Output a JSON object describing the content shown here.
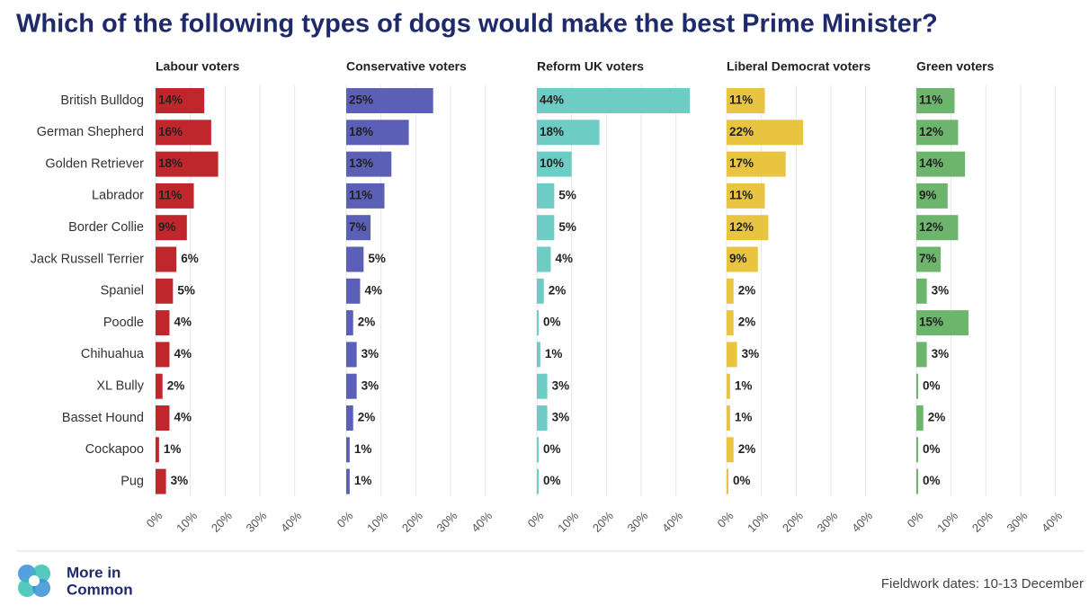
{
  "title": "Which of the following types of dogs would make the best Prime Minister?",
  "chart_data": [
    {
      "type": "bar",
      "title": "Labour voters",
      "color": "#c0272d",
      "label_color": "#ffffff",
      "categories": [
        "British Bulldog",
        "German Shepherd",
        "Golden Retriever",
        "Labrador",
        "Border Collie",
        "Jack Russell Terrier",
        "Spaniel",
        "Poodle",
        "Chihuahua",
        "XL Bully",
        "Basset Hound",
        "Cockapoo",
        "Pug"
      ],
      "values": [
        14,
        16,
        18,
        11,
        9,
        6,
        5,
        4,
        4,
        2,
        4,
        1,
        3
      ],
      "value_labels": [
        "14%",
        "16%",
        "18%",
        "11%",
        "9%",
        "6%",
        "5%",
        "4%",
        "4%",
        "2%",
        "4%",
        "1%",
        "3%"
      ],
      "xlim": [
        0,
        45
      ],
      "xticks": [
        {
          "value": 0,
          "label": "0%"
        },
        {
          "value": 10,
          "label": "10%"
        },
        {
          "value": 20,
          "label": "20%"
        },
        {
          "value": 30,
          "label": "30%"
        },
        {
          "value": 40,
          "label": "40%"
        }
      ],
      "grid": true
    },
    {
      "type": "bar",
      "title": "Conservative voters",
      "color": "#5b5fb5",
      "label_color": "#ffffff",
      "values": [
        25,
        18,
        13,
        11,
        7,
        5,
        4,
        2,
        3,
        3,
        2,
        1,
        1
      ],
      "value_labels": [
        "25%",
        "18%",
        "13%",
        "11%",
        "7%",
        "5%",
        "4%",
        "2%",
        "3%",
        "3%",
        "2%",
        "1%",
        "1%"
      ],
      "xlim": [
        0,
        45
      ],
      "xticks": [
        {
          "value": 0,
          "label": "0%"
        },
        {
          "value": 10,
          "label": "10%"
        },
        {
          "value": 20,
          "label": "20%"
        },
        {
          "value": 30,
          "label": "30%"
        },
        {
          "value": 40,
          "label": "40%"
        }
      ],
      "grid": true
    },
    {
      "type": "bar",
      "title": "Reform UK voters",
      "color": "#6dccc3",
      "label_color": "#1d1d1d",
      "values": [
        44,
        18,
        10,
        5,
        5,
        4,
        2,
        0,
        1,
        3,
        3,
        0,
        0
      ],
      "value_labels": [
        "44%",
        "18%",
        "10%",
        "5%",
        "5%",
        "4%",
        "2%",
        "0%",
        "1%",
        "3%",
        "3%",
        "0%",
        "0%"
      ],
      "xlim": [
        0,
        45
      ],
      "xticks": [
        {
          "value": 0,
          "label": "0%"
        },
        {
          "value": 10,
          "label": "10%"
        },
        {
          "value": 20,
          "label": "20%"
        },
        {
          "value": 30,
          "label": "30%"
        },
        {
          "value": 40,
          "label": "40%"
        }
      ],
      "grid": true
    },
    {
      "type": "bar",
      "title": "Liberal Democrat voters",
      "color": "#e9c440",
      "label_color": "#1d1d1d",
      "values": [
        11,
        22,
        17,
        11,
        12,
        9,
        2,
        2,
        3,
        1,
        1,
        2,
        0
      ],
      "value_labels": [
        "11%",
        "22%",
        "17%",
        "11%",
        "12%",
        "9%",
        "2%",
        "2%",
        "3%",
        "1%",
        "1%",
        "2%",
        "0%"
      ],
      "xlim": [
        0,
        45
      ],
      "xticks": [
        {
          "value": 0,
          "label": "0%"
        },
        {
          "value": 10,
          "label": "10%"
        },
        {
          "value": 20,
          "label": "20%"
        },
        {
          "value": 30,
          "label": "30%"
        },
        {
          "value": 40,
          "label": "40%"
        }
      ],
      "grid": true
    },
    {
      "type": "bar",
      "title": "Green voters",
      "color": "#6db56d",
      "label_color": "#ffffff",
      "values": [
        11,
        12,
        14,
        9,
        12,
        7,
        3,
        15,
        3,
        0,
        2,
        0,
        0
      ],
      "value_labels": [
        "11%",
        "12%",
        "14%",
        "9%",
        "12%",
        "7%",
        "3%",
        "15%",
        "3%",
        "0%",
        "2%",
        "0%",
        "0%"
      ],
      "xlim": [
        0,
        45
      ],
      "xticks": [
        {
          "value": 0,
          "label": "0%"
        },
        {
          "value": 10,
          "label": "10%"
        },
        {
          "value": 20,
          "label": "20%"
        },
        {
          "value": 30,
          "label": "30%"
        },
        {
          "value": 40,
          "label": "40%"
        }
      ],
      "grid": true
    }
  ],
  "logo": [
    "More in",
    "Common"
  ],
  "note": "Fieldwork dates: 10-13 December"
}
